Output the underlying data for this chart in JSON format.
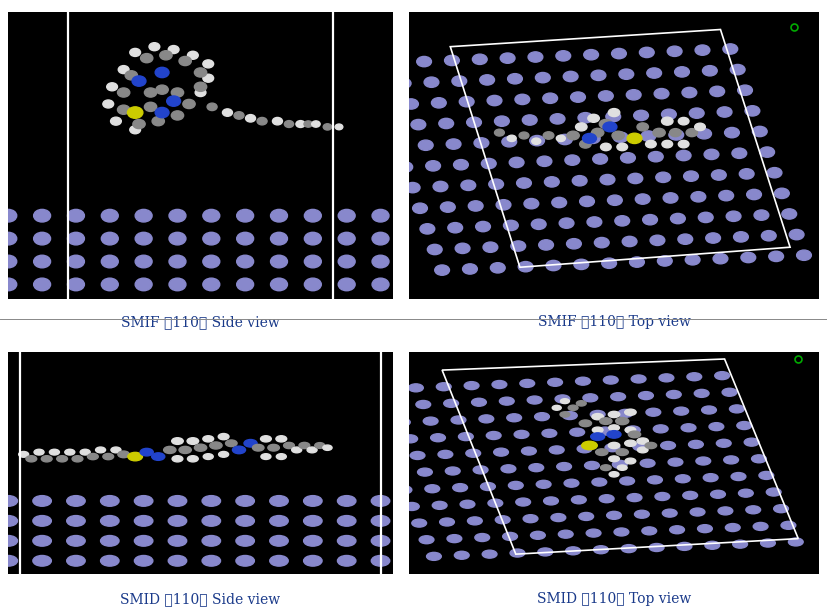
{
  "figure_width": 8.27,
  "figure_height": 6.16,
  "dpi": 100,
  "background_color": "#ffffff",
  "label_color": "#1a3a8a",
  "label_fontsize": 10,
  "labels": [
    "SMIF （110） Side view",
    "SMIF （110） Top view",
    "SMID （110） Side view",
    "SMID （110） Top view"
  ],
  "atom_color_fe": "#8888cc",
  "atom_color_c": "#888888",
  "atom_color_h": "#e0e0e0",
  "atom_color_n": "#2244cc",
  "atom_color_s": "#cccc00",
  "white_line_color": "#ffffff",
  "green_dot_color": "#00aa00"
}
